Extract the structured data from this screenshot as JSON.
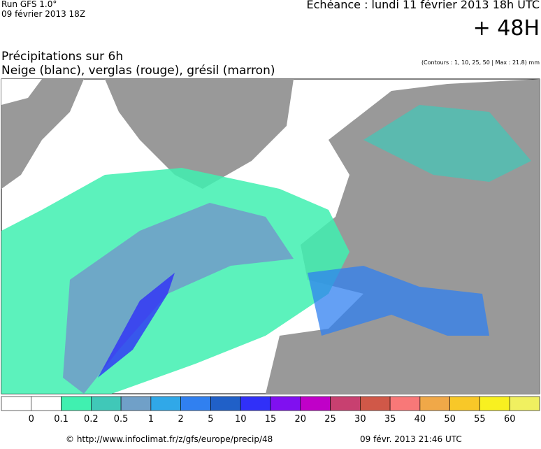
{
  "header": {
    "run": "Run GFS 1.0°",
    "run_date": "09 février 2013 18Z",
    "valid_time": "Echéance : lundi 11 février 2013 18h UTC",
    "lead": "+ 48H",
    "title": "Précipitations sur 6h",
    "subtitle": "Neige (blanc), verglas (rouge), grésil (marron)",
    "contours": "(Contours : 1, 10, 25, 50 | Max : 21.8) mm"
  },
  "legend": {
    "colors": [
      "#ffffff",
      "#ffffff",
      "#40f0b0",
      "#40c8b8",
      "#70a0c8",
      "#30a8e8",
      "#3080f0",
      "#2060c8",
      "#3030f8",
      "#8010f0",
      "#c000c8",
      "#c84070",
      "#d05848",
      "#f87878",
      "#f0a848",
      "#f8c828",
      "#f8f020",
      "#f0f060"
    ],
    "labels": [
      0,
      0.1,
      0.2,
      0.5,
      1,
      2,
      5,
      10,
      15,
      20,
      25,
      30,
      35,
      40,
      50,
      55,
      60
    ]
  },
  "footer": {
    "source": "© http://www.infoclimat.fr/z/gfs/europe/precip/48",
    "generated": "09 févr. 2013 21:46 UTC"
  }
}
